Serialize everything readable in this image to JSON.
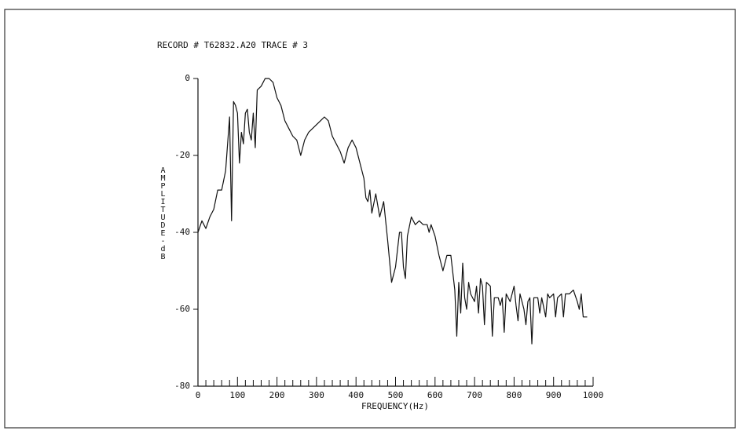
{
  "chart_data": {
    "type": "line",
    "title": "RECORD # T62832.A20 TRACE # 3",
    "x_label": "FREQUENCY(Hz)",
    "y_label": "AMPLITUDE-dB",
    "xlim": [
      0,
      1000
    ],
    "ylim": [
      -80,
      0
    ],
    "xticks": [
      0,
      100,
      200,
      300,
      400,
      500,
      600,
      700,
      800,
      900,
      1000
    ],
    "xminorticks": [
      20,
      40,
      60,
      80,
      120,
      140,
      160,
      180,
      220,
      240,
      260,
      280,
      320,
      340,
      360,
      380,
      420,
      440,
      460,
      480,
      520,
      540,
      560,
      580,
      620,
      640,
      660,
      680,
      720,
      740,
      760,
      780,
      820,
      840,
      860,
      880,
      920,
      940,
      960,
      980
    ],
    "yticks": [
      0,
      -20,
      -40,
      -60,
      -80
    ],
    "color": "#111111",
    "x": [
      0,
      10,
      20,
      30,
      40,
      50,
      60,
      70,
      80,
      85,
      90,
      95,
      100,
      105,
      110,
      115,
      120,
      125,
      130,
      135,
      140,
      145,
      150,
      160,
      170,
      180,
      190,
      200,
      210,
      220,
      230,
      240,
      250,
      260,
      270,
      280,
      290,
      300,
      310,
      320,
      330,
      340,
      350,
      360,
      370,
      380,
      390,
      400,
      410,
      420,
      425,
      430,
      435,
      440,
      450,
      460,
      470,
      475,
      480,
      490,
      500,
      510,
      515,
      520,
      525,
      530,
      540,
      550,
      560,
      570,
      580,
      585,
      590,
      600,
      610,
      620,
      630,
      640,
      650,
      655,
      660,
      665,
      670,
      675,
      680,
      685,
      690,
      700,
      705,
      710,
      715,
      720,
      725,
      730,
      740,
      745,
      750,
      760,
      765,
      770,
      775,
      780,
      790,
      800,
      805,
      810,
      815,
      820,
      825,
      830,
      835,
      840,
      845,
      850,
      860,
      865,
      870,
      880,
      885,
      890,
      900,
      905,
      910,
      920,
      925,
      930,
      940,
      950,
      960,
      965,
      970,
      975,
      985
    ],
    "values": [
      -40,
      -37,
      -39,
      -36,
      -34,
      -29,
      -29,
      -24,
      -10,
      -37,
      -6,
      -7,
      -9,
      -22,
      -14,
      -17,
      -9,
      -8,
      -14,
      -16,
      -9,
      -18,
      -3,
      -2,
      0,
      0,
      -1,
      -5,
      -7,
      -11,
      -13,
      -15,
      -16,
      -20,
      -16,
      -14,
      -13,
      -12,
      -11,
      -10,
      -11,
      -15,
      -17,
      -19,
      -22,
      -18,
      -16,
      -18,
      -22,
      -26,
      -31,
      -32,
      -29,
      -35,
      -30,
      -36,
      -32,
      -37,
      -42,
      -53,
      -49,
      -40,
      -40,
      -49,
      -52,
      -41,
      -36,
      -38,
      -37,
      -38,
      -38,
      -40,
      -38,
      -41,
      -46,
      -50,
      -46,
      -46,
      -55,
      -67,
      -53,
      -61,
      -48,
      -57,
      -60,
      -53,
      -56,
      -58,
      -54,
      -61,
      -52,
      -54,
      -64,
      -53,
      -54,
      -67,
      -57,
      -57,
      -59,
      -57,
      -66,
      -56,
      -58,
      -54,
      -59,
      -63,
      -56,
      -58,
      -60,
      -64,
      -58,
      -57,
      -69,
      -57,
      -57,
      -61,
      -57,
      -62,
      -56,
      -57,
      -56,
      -62,
      -57,
      -56,
      -62,
      -56,
      -56,
      -55,
      -58,
      -60,
      -56,
      -62,
      -62
    ]
  }
}
